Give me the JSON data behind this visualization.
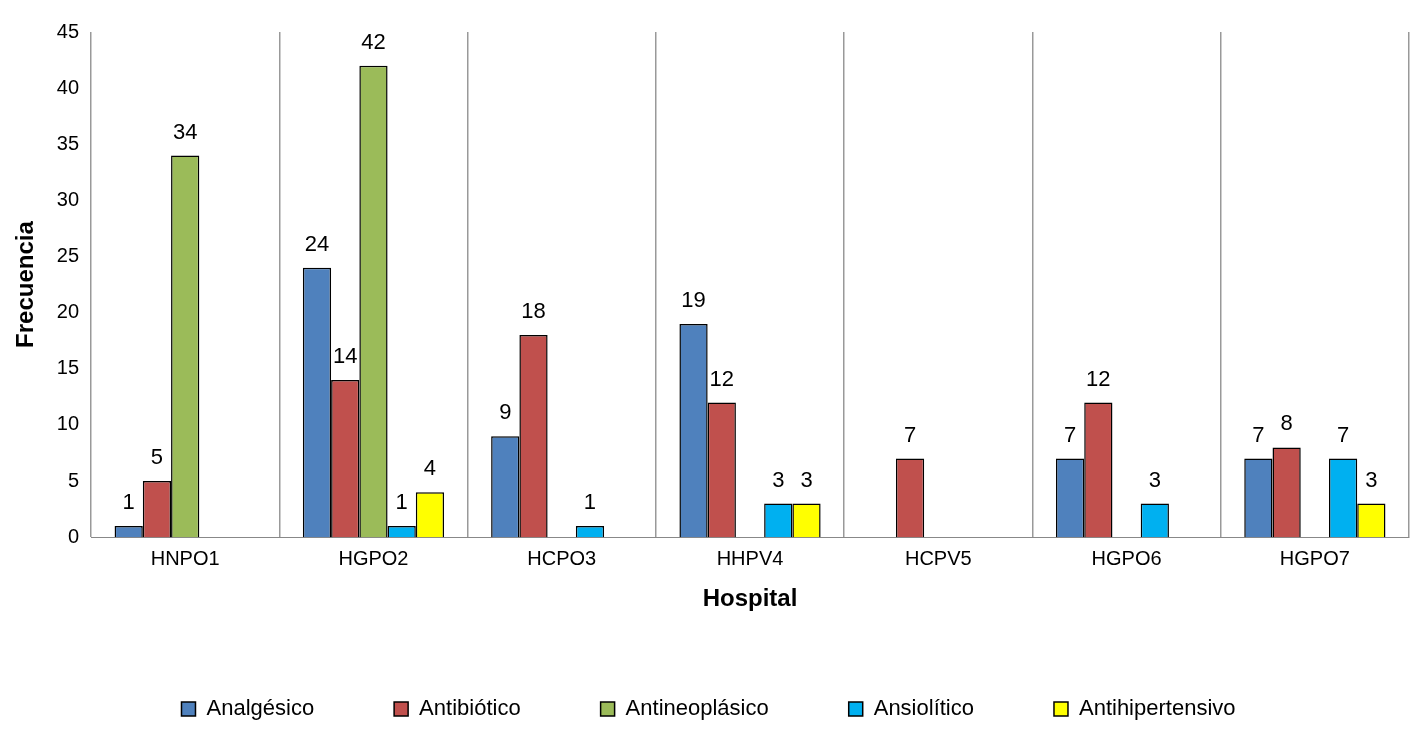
{
  "chart_data": {
    "type": "bar",
    "xlabel": "Hospital",
    "ylabel": "Frecuencia",
    "categories": [
      "HNPO1",
      "HGPO2",
      "HCPO3",
      "HHPV4",
      "HCPV5",
      "HGPO6",
      "HGPO7"
    ],
    "series": [
      {
        "name": "Analgésico",
        "color": "#4f81bd",
        "values": [
          1,
          24,
          9,
          19,
          null,
          7,
          7
        ]
      },
      {
        "name": "Antibiótico",
        "color": "#c0504d",
        "values": [
          5,
          14,
          18,
          12,
          7,
          12,
          8
        ]
      },
      {
        "name": "Antineoplásico",
        "color": "#9bbb59",
        "values": [
          34,
          42,
          null,
          null,
          null,
          null,
          null
        ]
      },
      {
        "name": "Ansiolítico",
        "color": "#00b0f0",
        "values": [
          null,
          1,
          1,
          3,
          null,
          3,
          7
        ]
      },
      {
        "name": "Antihipertensivo",
        "color": "#ffff00",
        "values": [
          null,
          4,
          null,
          3,
          null,
          null,
          3
        ]
      }
    ],
    "ylim": [
      0,
      45
    ],
    "yticks": [
      0,
      5,
      10,
      15,
      20,
      25,
      30,
      35,
      40,
      45
    ],
    "grid": "x",
    "legend": "bottom",
    "data_labels": true
  }
}
